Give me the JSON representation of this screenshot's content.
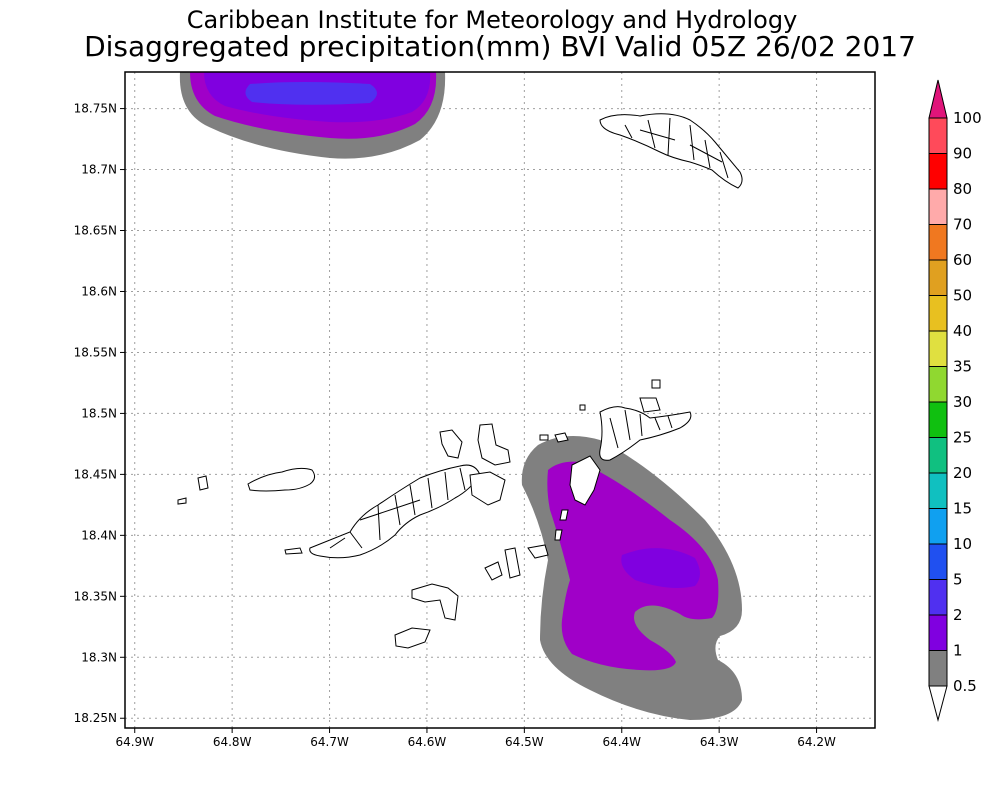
{
  "title": {
    "line1": "Caribbean Institute for Meteorology and Hydrology",
    "line2": "Disaggregated precipitation(mm) BVI Valid 05Z 26/02 2017"
  },
  "map": {
    "lon_min": -64.91,
    "lon_max": -64.14,
    "lat_min": 18.242,
    "lat_max": 18.78,
    "lat_ticks": [
      {
        "value": 18.75,
        "label": "18.75N"
      },
      {
        "value": 18.7,
        "label": "18.7N"
      },
      {
        "value": 18.65,
        "label": "18.65N"
      },
      {
        "value": 18.6,
        "label": "18.6N"
      },
      {
        "value": 18.55,
        "label": "18.55N"
      },
      {
        "value": 18.5,
        "label": "18.5N"
      },
      {
        "value": 18.45,
        "label": "18.45N"
      },
      {
        "value": 18.4,
        "label": "18.4N"
      },
      {
        "value": 18.35,
        "label": "18.35N"
      },
      {
        "value": 18.3,
        "label": "18.3N"
      },
      {
        "value": 18.25,
        "label": "18.25N"
      }
    ],
    "lon_ticks": [
      {
        "value": -64.9,
        "label": "64.9W"
      },
      {
        "value": -64.8,
        "label": "64.8W"
      },
      {
        "value": -64.7,
        "label": "64.7W"
      },
      {
        "value": -64.6,
        "label": "64.6W"
      },
      {
        "value": -64.5,
        "label": "64.5W"
      },
      {
        "value": -64.4,
        "label": "64.4W"
      },
      {
        "value": -64.3,
        "label": "64.3W"
      },
      {
        "value": -64.2,
        "label": "64.2W"
      }
    ],
    "grid": true
  },
  "legend": {
    "levels": [
      {
        "label": "100",
        "color": "#ff4a5a"
      },
      {
        "label": "90",
        "color": "#ff0000"
      },
      {
        "label": "80",
        "color": "#ffaaaa"
      },
      {
        "label": "70",
        "color": "#f07820"
      },
      {
        "label": "60",
        "color": "#e0a020"
      },
      {
        "label": "50",
        "color": "#e8c020"
      },
      {
        "label": "40",
        "color": "#e0e040"
      },
      {
        "label": "35",
        "color": "#90d830"
      },
      {
        "label": "30",
        "color": "#10c010"
      },
      {
        "label": "25",
        "color": "#10c080"
      },
      {
        "label": "20",
        "color": "#10c0c0"
      },
      {
        "label": "15",
        "color": "#10a0f0"
      },
      {
        "label": "10",
        "color": "#2050f0"
      },
      {
        "label": "5",
        "color": "#5030f0"
      },
      {
        "label": "2",
        "color": "#8000e0"
      },
      {
        "label": "1",
        "color": "#a000c8"
      },
      {
        "label": "0.5",
        "color": "#808080"
      }
    ],
    "top_arrow_color": "#e0157a",
    "bottom_arrow_color": "#ffffff"
  },
  "precip_colors": {
    "band_0_5": "#808080",
    "band_1": "#a000c8",
    "band_2": "#8000e0",
    "band_5": "#5030f0"
  }
}
